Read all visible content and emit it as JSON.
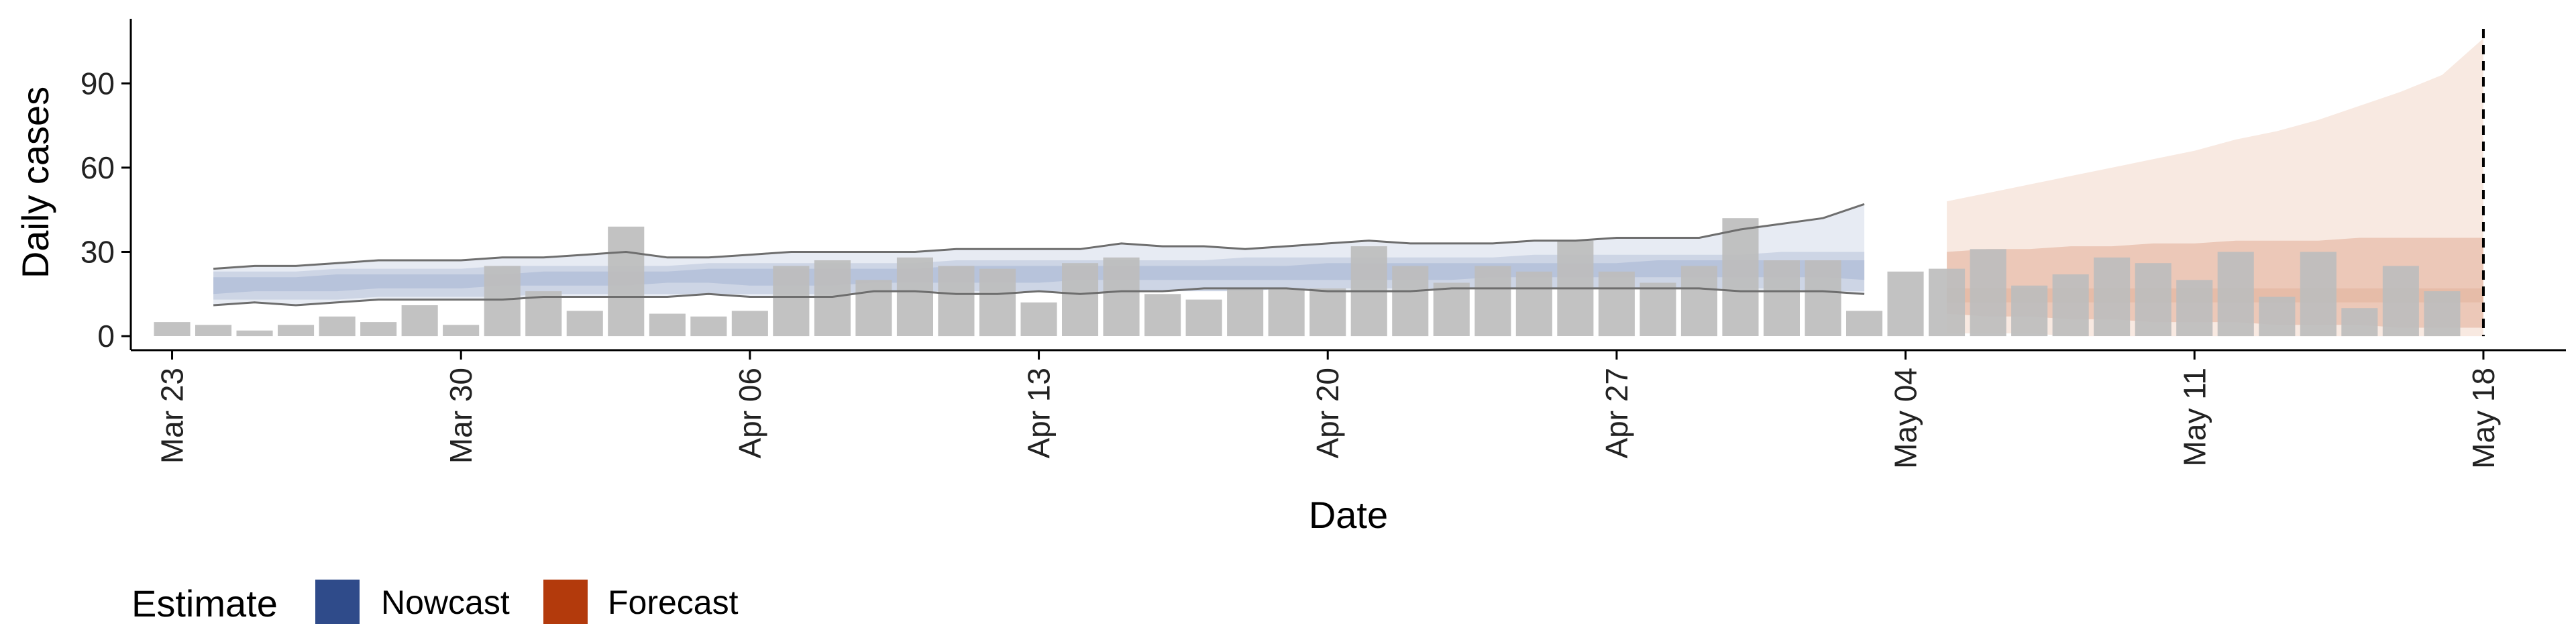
{
  "chart_data": {
    "type": "bar",
    "title": "",
    "xlabel": "Date",
    "ylabel": "Daily cases",
    "ylim": [
      -5,
      113
    ],
    "x_range": [
      "2020-03-22",
      "2020-05-20"
    ],
    "y_ticks": [
      0,
      30,
      60,
      90
    ],
    "x_ticks": [
      {
        "date": "2020-03-23",
        "label": "Mar 23"
      },
      {
        "date": "2020-03-30",
        "label": "Mar 30"
      },
      {
        "date": "2020-04-06",
        "label": "Apr 06"
      },
      {
        "date": "2020-04-13",
        "label": "Apr 13"
      },
      {
        "date": "2020-04-20",
        "label": "Apr 20"
      },
      {
        "date": "2020-04-27",
        "label": "Apr 27"
      },
      {
        "date": "2020-05-04",
        "label": "May 04"
      },
      {
        "date": "2020-05-11",
        "label": "May 11"
      },
      {
        "date": "2020-05-18",
        "label": "May 18"
      }
    ],
    "grid": false,
    "legend_position": "bottom-left",
    "vline_date": "2020-05-18",
    "bars": {
      "start_date": "2020-03-23",
      "color": "#bdbdbd",
      "values": [
        5,
        4,
        2,
        4,
        7,
        5,
        11,
        4,
        25,
        16,
        9,
        39,
        8,
        7,
        9,
        25,
        27,
        20,
        28,
        25,
        24,
        12,
        26,
        28,
        15,
        13,
        17,
        17,
        17,
        32,
        25,
        19,
        25,
        23,
        34,
        23,
        19,
        25,
        42,
        27,
        27,
        9,
        23,
        24,
        31,
        18,
        22,
        28,
        26,
        20,
        30,
        14,
        30,
        10,
        25,
        16
      ]
    },
    "legend": {
      "title": "Estimate",
      "items": [
        {
          "label": "Nowcast",
          "color": "#2f4b8a"
        },
        {
          "label": "Forecast",
          "color": "#b33a0c"
        }
      ]
    },
    "series": [
      {
        "name": "Nowcast",
        "start_date": "2020-03-24",
        "color": "#2f4b8a",
        "inner": {
          "lower": [
            15,
            16,
            16,
            16,
            17,
            17,
            17,
            18,
            18,
            18,
            18,
            19,
            19,
            18,
            18,
            18,
            19,
            19,
            19,
            19,
            19,
            20,
            20,
            20,
            20,
            20,
            20,
            20,
            20,
            20,
            20,
            21,
            21,
            21,
            21,
            21,
            21,
            21,
            21,
            21,
            20
          ],
          "upper": [
            21,
            21,
            21,
            22,
            22,
            22,
            22,
            22,
            23,
            23,
            23,
            23,
            24,
            24,
            24,
            24,
            24,
            24,
            25,
            25,
            25,
            25,
            25,
            25,
            25,
            25,
            25,
            26,
            26,
            26,
            26,
            26,
            26,
            26,
            26,
            27,
            27,
            27,
            27,
            27,
            27
          ]
        },
        "mid": {
          "lower": [
            13,
            13,
            13,
            13,
            14,
            14,
            14,
            14,
            15,
            15,
            15,
            15,
            15,
            15,
            15,
            15,
            16,
            16,
            16,
            16,
            16,
            16,
            16,
            16,
            16,
            16,
            17,
            17,
            17,
            17,
            17,
            17,
            17,
            17,
            17,
            17,
            17,
            17,
            17,
            16,
            16
          ],
          "upper": [
            23,
            23,
            23,
            24,
            24,
            24,
            24,
            25,
            25,
            25,
            25,
            25,
            26,
            26,
            26,
            26,
            26,
            26,
            27,
            27,
            27,
            27,
            27,
            27,
            27,
            28,
            28,
            28,
            28,
            28,
            28,
            28,
            29,
            29,
            29,
            29,
            29,
            29,
            30,
            30,
            30
          ]
        },
        "outer": {
          "lower": [
            11,
            12,
            11,
            12,
            13,
            13,
            13,
            13,
            14,
            14,
            14,
            14,
            15,
            14,
            14,
            14,
            16,
            16,
            15,
            15,
            16,
            15,
            16,
            16,
            17,
            17,
            17,
            16,
            16,
            16,
            17,
            17,
            17,
            17,
            17,
            17,
            17,
            16,
            16,
            16,
            15
          ],
          "upper": [
            24,
            25,
            25,
            26,
            27,
            27,
            27,
            28,
            28,
            29,
            30,
            28,
            28,
            29,
            30,
            30,
            30,
            30,
            31,
            31,
            31,
            31,
            33,
            32,
            32,
            31,
            32,
            33,
            34,
            33,
            33,
            33,
            34,
            34,
            35,
            35,
            35,
            38,
            40,
            42,
            47
          ]
        }
      },
      {
        "name": "Forecast",
        "start_date": "2020-05-05",
        "color": "#b33a0c",
        "inner": {
          "lower": [
            12,
            12,
            12,
            12,
            12,
            12,
            12,
            12,
            12,
            12,
            12,
            12,
            12,
            12
          ],
          "upper": [
            17,
            17,
            17,
            17,
            17,
            17,
            17,
            17,
            17,
            17,
            17,
            17,
            17,
            17
          ]
        },
        "mid": {
          "lower": [
            8,
            7,
            7,
            6,
            6,
            5,
            5,
            5,
            4,
            4,
            4,
            3,
            3,
            3
          ],
          "upper": [
            30,
            31,
            31,
            32,
            32,
            33,
            33,
            34,
            34,
            34,
            35,
            35,
            35,
            35
          ]
        },
        "outer": {
          "lower": [
            1,
            1,
            1,
            0,
            0,
            0,
            0,
            0,
            0,
            0,
            0,
            0,
            0,
            0
          ],
          "upper": [
            48,
            51,
            54,
            57,
            60,
            63,
            66,
            70,
            73,
            77,
            82,
            87,
            93,
            106
          ]
        }
      }
    ]
  }
}
